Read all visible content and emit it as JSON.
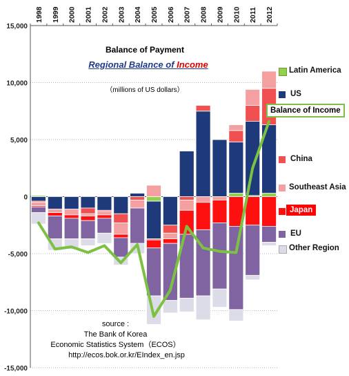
{
  "chart_data": {
    "type": "bar",
    "title": "Balance of Payment",
    "subtitle": "Regional Balance of Income",
    "subtitle_parts": [
      "Regional Balance of ",
      "Income"
    ],
    "unit_note": "（millions of US dollars）",
    "categories": [
      "1998",
      "1999",
      "2000",
      "2001",
      "2002",
      "2003",
      "2004",
      "2005",
      "2006",
      "2007",
      "2008",
      "2009",
      "2010",
      "2011",
      "2012"
    ],
    "y_ticks": [
      "15,000",
      "10,000",
      "5,000",
      "0",
      "-5,000",
      "-10,000",
      "-15,000"
    ],
    "ylim": [
      -15000,
      15000
    ],
    "stacked": true,
    "grid": "horizontal dotted",
    "legend_position": "right",
    "colors": {
      "Latin America": "#92d050",
      "US": "#1f3a7a",
      "China": "#f05050",
      "Southeast Asia": "#f4a0a0",
      "Japan": "#ff1010",
      "EU": "#8064a2",
      "Other Region": "#dcdce8",
      "Balance of Income": "#7dc142"
    },
    "series": [
      {
        "name": "Latin America",
        "values": [
          100,
          0,
          0,
          0,
          0,
          0,
          0,
          -400,
          0,
          0,
          0,
          0,
          300,
          100,
          300
        ]
      },
      {
        "name": "US",
        "values": [
          -400,
          -1100,
          -1100,
          -1000,
          -1200,
          -1500,
          300,
          -3300,
          -2500,
          4000,
          7500,
          5000,
          4500,
          6500,
          6000
        ]
      },
      {
        "name": "China",
        "values": [
          -100,
          0,
          0,
          -500,
          -100,
          -800,
          -300,
          -100,
          -700,
          -300,
          500,
          0,
          1000,
          1400,
          3200
        ]
      },
      {
        "name": "Southeast Asia",
        "values": [
          -300,
          -300,
          -500,
          -200,
          -300,
          -1000,
          -700,
          1000,
          -500,
          -900,
          -500,
          -300,
          500,
          1400,
          1500
        ]
      },
      {
        "name": "Japan",
        "values": [
          -100,
          -300,
          -300,
          -400,
          -300,
          -300,
          0,
          -700,
          -400,
          -2100,
          -2400,
          -2000,
          -2600,
          -2500,
          -2600
        ]
      },
      {
        "name": "EU",
        "values": [
          -500,
          -2000,
          -1800,
          -1600,
          -1300,
          -1700,
          -3100,
          -4200,
          -5000,
          -5600,
          -5800,
          -5800,
          -7300,
          -4400,
          -1400
        ]
      },
      {
        "name": "Other Region",
        "values": [
          -1000,
          -1000,
          -900,
          -600,
          -900,
          -700,
          -900,
          -2500,
          -1100,
          -1200,
          -2100,
          -1600,
          -1000,
          -400,
          -300
        ]
      },
      {
        "name": "Balance of Income",
        "type": "line",
        "values": [
          -2300,
          -4600,
          -4400,
          -4900,
          -4300,
          -5800,
          -4200,
          -10500,
          -8200,
          -2600,
          -4500,
          -4800,
          -4900,
          2500,
          6600
        ]
      }
    ]
  },
  "source": {
    "line1": "source :",
    "line2": "The Bank of Korea",
    "line3": "Economic Statistics System（ECOS）",
    "line4": "http://ecos.bok.or.kr/EIndex_en.jsp"
  },
  "legend": {
    "latin_america": "Latin America",
    "us": "US",
    "balance_of_income": "Balance of Income",
    "china": "China",
    "southeast_asia": "Southeast Asia",
    "japan": "Japan",
    "eu": "EU",
    "other_region": "Other Region"
  }
}
